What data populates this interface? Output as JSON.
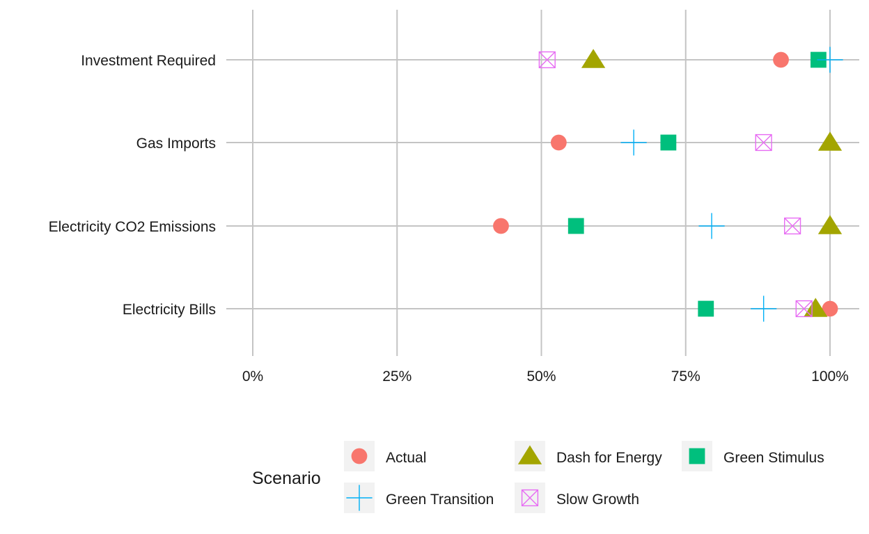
{
  "chart_data": {
    "type": "scatter",
    "title": "",
    "xlabel": "",
    "ylabel": "",
    "xlim": [
      0,
      100
    ],
    "x_ticks": [
      0,
      25,
      50,
      75,
      100
    ],
    "x_tick_labels": [
      "0%",
      "25%",
      "50%",
      "75%",
      "100%"
    ],
    "categories": [
      "Investment Required",
      "Gas Imports",
      "Electricity CO2 Emissions",
      "Electricity Bills"
    ],
    "grid": true,
    "legend": {
      "title": "Scenario",
      "position": "bottom"
    },
    "series": [
      {
        "name": "Actual",
        "shape": "circle",
        "color": "#F8766D",
        "values": [
          91.5,
          53,
          43,
          100
        ]
      },
      {
        "name": "Dash for Energy",
        "shape": "triangle",
        "color": "#A3A500",
        "values": [
          59,
          100,
          100,
          97.5
        ]
      },
      {
        "name": "Green Stimulus",
        "shape": "square",
        "color": "#00BF7D",
        "values": [
          98,
          72,
          56,
          78.5
        ]
      },
      {
        "name": "Green Transition",
        "shape": "plus",
        "color": "#00B0F6",
        "values": [
          100,
          66,
          79.5,
          88.5
        ]
      },
      {
        "name": "Slow Growth",
        "shape": "square-cross",
        "color": "#E76BF3",
        "values": [
          51,
          88.5,
          93.5,
          95.5
        ]
      }
    ]
  }
}
